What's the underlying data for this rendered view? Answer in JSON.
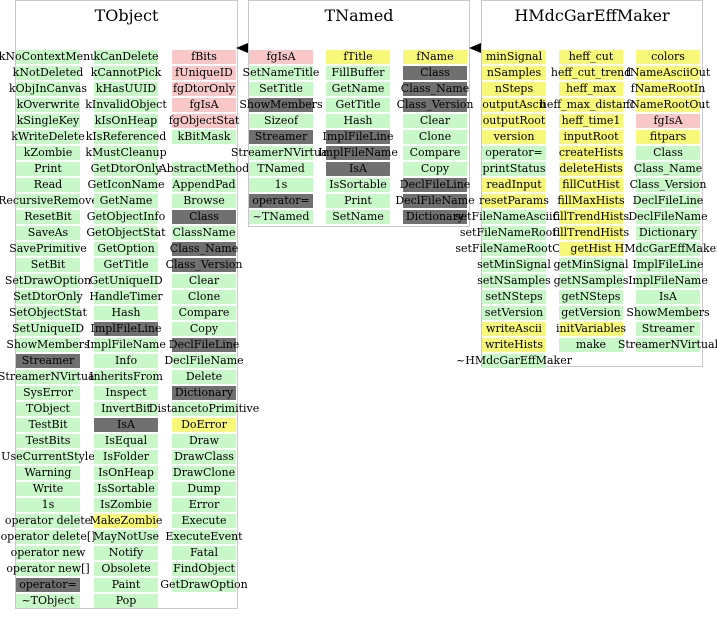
{
  "classes": [
    {
      "title": "TObject",
      "columns": [
        {
          "items": [
            {
              "t": "kNoContextMenu",
              "c": "g"
            },
            {
              "t": "kNotDeleted",
              "c": "g"
            },
            {
              "t": "kObjInCanvas",
              "c": "g"
            },
            {
              "t": "kOverwrite",
              "c": "g"
            },
            {
              "t": "kSingleKey",
              "c": "g"
            },
            {
              "t": "kWriteDelete",
              "c": "g"
            },
            {
              "t": "kZombie",
              "c": "g"
            },
            {
              "t": "Print",
              "c": "g"
            },
            {
              "t": "Read",
              "c": "g"
            },
            {
              "t": "RecursiveRemove",
              "c": "g"
            },
            {
              "t": "ResetBit",
              "c": "g"
            },
            {
              "t": "SaveAs",
              "c": "g"
            },
            {
              "t": "SavePrimitive",
              "c": "g"
            },
            {
              "t": "SetBit",
              "c": "g"
            },
            {
              "t": "SetDrawOption",
              "c": "g"
            },
            {
              "t": "SetDtorOnly",
              "c": "g"
            },
            {
              "t": "SetObjectStat",
              "c": "g"
            },
            {
              "t": "SetUniqueID",
              "c": "g"
            },
            {
              "t": "ShowMembers",
              "c": "g"
            },
            {
              "t": "Streamer",
              "c": "d"
            },
            {
              "t": "StreamerNVirtual",
              "c": "g"
            },
            {
              "t": "SysError",
              "c": "g"
            },
            {
              "t": "TObject",
              "c": "g"
            },
            {
              "t": "TestBit",
              "c": "g"
            },
            {
              "t": "TestBits",
              "c": "g"
            },
            {
              "t": "UseCurrentStyle",
              "c": "g"
            },
            {
              "t": "Warning",
              "c": "g"
            },
            {
              "t": "Write",
              "c": "g"
            },
            {
              "t": "1s",
              "c": "g"
            },
            {
              "t": "operator delete",
              "c": "g"
            },
            {
              "t": "operator delete[]",
              "c": "g"
            },
            {
              "t": "operator new",
              "c": "g"
            },
            {
              "t": "operator new[]",
              "c": "g"
            },
            {
              "t": "operator=",
              "c": "d"
            },
            {
              "t": "~TObject",
              "c": "g"
            }
          ]
        },
        {
          "items": [
            {
              "t": "kCanDelete",
              "c": "g"
            },
            {
              "t": "kCannotPick",
              "c": "g"
            },
            {
              "t": "kHasUUID",
              "c": "g"
            },
            {
              "t": "kInvalidObject",
              "c": "g"
            },
            {
              "t": "kIsOnHeap",
              "c": "g"
            },
            {
              "t": "kIsReferenced",
              "c": "g"
            },
            {
              "t": "kMustCleanup",
              "c": "g"
            },
            {
              "t": "GetDtorOnly",
              "c": "g"
            },
            {
              "t": "GetIconName",
              "c": "g"
            },
            {
              "t": "GetName",
              "c": "g"
            },
            {
              "t": "GetObjectInfo",
              "c": "g"
            },
            {
              "t": "GetObjectStat",
              "c": "g"
            },
            {
              "t": "GetOption",
              "c": "g"
            },
            {
              "t": "GetTitle",
              "c": "g"
            },
            {
              "t": "GetUniqueID",
              "c": "g"
            },
            {
              "t": "HandleTimer",
              "c": "g"
            },
            {
              "t": "Hash",
              "c": "g"
            },
            {
              "t": "ImplFileLine",
              "c": "d"
            },
            {
              "t": "ImplFileName",
              "c": "g"
            },
            {
              "t": "Info",
              "c": "g"
            },
            {
              "t": "InheritsFrom",
              "c": "g"
            },
            {
              "t": "Inspect",
              "c": "g"
            },
            {
              "t": "InvertBit",
              "c": "g"
            },
            {
              "t": "IsA",
              "c": "d"
            },
            {
              "t": "IsEqual",
              "c": "g"
            },
            {
              "t": "IsFolder",
              "c": "g"
            },
            {
              "t": "IsOnHeap",
              "c": "g"
            },
            {
              "t": "IsSortable",
              "c": "g"
            },
            {
              "t": "IsZombie",
              "c": "g"
            },
            {
              "t": "MakeZombie",
              "c": "y"
            },
            {
              "t": "MayNotUse",
              "c": "g"
            },
            {
              "t": "Notify",
              "c": "g"
            },
            {
              "t": "Obsolete",
              "c": "g"
            },
            {
              "t": "Paint",
              "c": "g"
            },
            {
              "t": "Pop",
              "c": "g"
            }
          ]
        },
        {
          "items": [
            {
              "t": "fBits",
              "c": "p"
            },
            {
              "t": "fUniqueID",
              "c": "p"
            },
            {
              "t": "fgDtorOnly",
              "c": "p"
            },
            {
              "t": "fgIsA",
              "c": "p"
            },
            {
              "t": "fgObjectStat",
              "c": "p"
            },
            {
              "t": "kBitMask",
              "c": "g"
            },
            {
              "t": "",
              "c": "w"
            },
            {
              "t": "AbstractMethod",
              "c": "g"
            },
            {
              "t": "AppendPad",
              "c": "g"
            },
            {
              "t": "Browse",
              "c": "g"
            },
            {
              "t": "Class",
              "c": "d"
            },
            {
              "t": "ClassName",
              "c": "g"
            },
            {
              "t": "Class_Name",
              "c": "d"
            },
            {
              "t": "Class_Version",
              "c": "d"
            },
            {
              "t": "Clear",
              "c": "g"
            },
            {
              "t": "Clone",
              "c": "g"
            },
            {
              "t": "Compare",
              "c": "g"
            },
            {
              "t": "Copy",
              "c": "g"
            },
            {
              "t": "DeclFileLine",
              "c": "d"
            },
            {
              "t": "DeclFileName",
              "c": "g"
            },
            {
              "t": "Delete",
              "c": "g"
            },
            {
              "t": "Dictionary",
              "c": "d"
            },
            {
              "t": "DistancetoPrimitive",
              "c": "g"
            },
            {
              "t": "DoError",
              "c": "y"
            },
            {
              "t": "Draw",
              "c": "g"
            },
            {
              "t": "DrawClass",
              "c": "g"
            },
            {
              "t": "DrawClone",
              "c": "g"
            },
            {
              "t": "Dump",
              "c": "g"
            },
            {
              "t": "Error",
              "c": "g"
            },
            {
              "t": "Execute",
              "c": "g"
            },
            {
              "t": "ExecuteEvent",
              "c": "g"
            },
            {
              "t": "Fatal",
              "c": "g"
            },
            {
              "t": "FindObject",
              "c": "g"
            },
            {
              "t": "GetDrawOption",
              "c": "g"
            }
          ]
        }
      ]
    },
    {
      "title": "TNamed",
      "columns": [
        {
          "items": [
            {
              "t": "fgIsA",
              "c": "p"
            },
            {
              "t": "SetNameTitle",
              "c": "g"
            },
            {
              "t": "SetTitle",
              "c": "g"
            },
            {
              "t": "ShowMembers",
              "c": "d"
            },
            {
              "t": "Sizeof",
              "c": "g"
            },
            {
              "t": "Streamer",
              "c": "d"
            },
            {
              "t": "StreamerNVirtual",
              "c": "g"
            },
            {
              "t": "TNamed",
              "c": "g"
            },
            {
              "t": "1s",
              "c": "g"
            },
            {
              "t": "operator=",
              "c": "d"
            },
            {
              "t": "~TNamed",
              "c": "g"
            }
          ]
        },
        {
          "items": [
            {
              "t": "fTitle",
              "c": "y"
            },
            {
              "t": "FillBuffer",
              "c": "g"
            },
            {
              "t": "GetName",
              "c": "g"
            },
            {
              "t": "GetTitle",
              "c": "g"
            },
            {
              "t": "Hash",
              "c": "g"
            },
            {
              "t": "ImplFileLine",
              "c": "d"
            },
            {
              "t": "ImplFileName",
              "c": "d"
            },
            {
              "t": "IsA",
              "c": "d"
            },
            {
              "t": "IsSortable",
              "c": "g"
            },
            {
              "t": "Print",
              "c": "g"
            },
            {
              "t": "SetName",
              "c": "g"
            }
          ]
        },
        {
          "items": [
            {
              "t": "fName",
              "c": "y"
            },
            {
              "t": "Class",
              "c": "d"
            },
            {
              "t": "Class_Name",
              "c": "d"
            },
            {
              "t": "Class_Version",
              "c": "d"
            },
            {
              "t": "Clear",
              "c": "g"
            },
            {
              "t": "Clone",
              "c": "g"
            },
            {
              "t": "Compare",
              "c": "g"
            },
            {
              "t": "Copy",
              "c": "g"
            },
            {
              "t": "DeclFileLine",
              "c": "d"
            },
            {
              "t": "DeclFileName",
              "c": "d"
            },
            {
              "t": "Dictionary",
              "c": "d"
            }
          ]
        }
      ]
    },
    {
      "title": "HMdcGarEffMaker",
      "columns": [
        {
          "items": [
            {
              "t": "minSignal",
              "c": "y"
            },
            {
              "t": "nSamples",
              "c": "y"
            },
            {
              "t": "nSteps",
              "c": "y"
            },
            {
              "t": "outputAscii",
              "c": "y"
            },
            {
              "t": "outputRoot",
              "c": "y"
            },
            {
              "t": "version",
              "c": "y"
            },
            {
              "t": "operator=",
              "c": "g"
            },
            {
              "t": "printStatus",
              "c": "g"
            },
            {
              "t": "readInput",
              "c": "y"
            },
            {
              "t": "resetParams",
              "c": "y"
            },
            {
              "t": "setFileNameAsciiOut",
              "c": "g"
            },
            {
              "t": "setFileNameRootIn",
              "c": "g"
            },
            {
              "t": "setFileNameRootOut",
              "c": "g"
            },
            {
              "t": "setMinSignal",
              "c": "g"
            },
            {
              "t": "setNSamples",
              "c": "g"
            },
            {
              "t": "setNSteps",
              "c": "g"
            },
            {
              "t": "setVersion",
              "c": "g"
            },
            {
              "t": "writeAscii",
              "c": "y"
            },
            {
              "t": "writeHists",
              "c": "y"
            },
            {
              "t": "~HMdcGarEffMaker",
              "c": "g"
            }
          ]
        },
        {
          "items": [
            {
              "t": "heff_cut",
              "c": "y"
            },
            {
              "t": "heff_cut_trend",
              "c": "y"
            },
            {
              "t": "heff_max",
              "c": "y"
            },
            {
              "t": "heff_max_distance",
              "c": "y"
            },
            {
              "t": "heff_time1",
              "c": "y"
            },
            {
              "t": "inputRoot",
              "c": "y"
            },
            {
              "t": "createHists",
              "c": "y"
            },
            {
              "t": "deleteHists",
              "c": "y"
            },
            {
              "t": "fillCutHist",
              "c": "y"
            },
            {
              "t": "fillMaxHists",
              "c": "y"
            },
            {
              "t": "fillTrendHists",
              "c": "y"
            },
            {
              "t": "fillTrendHists",
              "c": "y"
            },
            {
              "t": "getHist",
              "c": "y"
            },
            {
              "t": "getMinSignal",
              "c": "g"
            },
            {
              "t": "getNSamples",
              "c": "g"
            },
            {
              "t": "getNSteps",
              "c": "g"
            },
            {
              "t": "getVersion",
              "c": "g"
            },
            {
              "t": "initVariables",
              "c": "y"
            },
            {
              "t": "make",
              "c": "g"
            }
          ]
        },
        {
          "items": [
            {
              "t": "colors",
              "c": "y"
            },
            {
              "t": "fNameAsciiOut",
              "c": "y"
            },
            {
              "t": "fNameRootIn",
              "c": "y"
            },
            {
              "t": "fNameRootOut",
              "c": "y"
            },
            {
              "t": "fgIsA",
              "c": "p"
            },
            {
              "t": "fitpars",
              "c": "y"
            },
            {
              "t": "Class",
              "c": "g"
            },
            {
              "t": "Class_Name",
              "c": "g"
            },
            {
              "t": "Class_Version",
              "c": "g"
            },
            {
              "t": "DeclFileLine",
              "c": "g"
            },
            {
              "t": "DeclFileName",
              "c": "g"
            },
            {
              "t": "Dictionary",
              "c": "g"
            },
            {
              "t": "HMdcGarEffMaker",
              "c": "g"
            },
            {
              "t": "ImplFileLine",
              "c": "g"
            },
            {
              "t": "ImplFileName",
              "c": "g"
            },
            {
              "t": "IsA",
              "c": "g"
            },
            {
              "t": "ShowMembers",
              "c": "g"
            },
            {
              "t": "Streamer",
              "c": "g"
            },
            {
              "t": "StreamerNVirtual",
              "c": "g"
            }
          ]
        }
      ]
    }
  ]
}
